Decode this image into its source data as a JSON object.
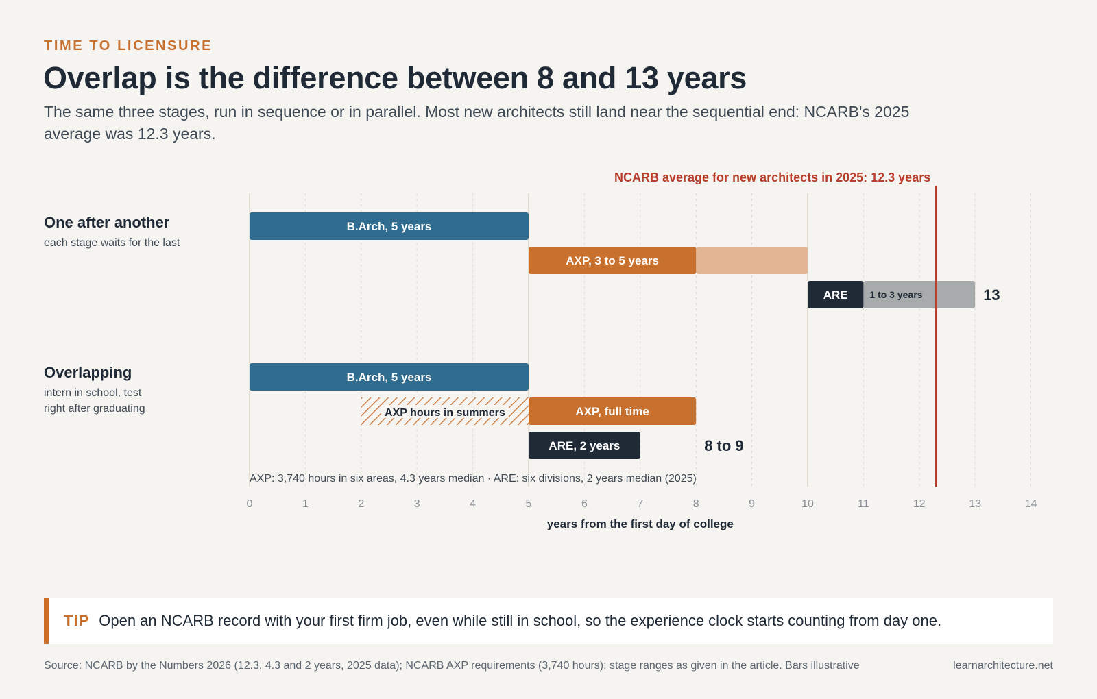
{
  "header": {
    "kicker": "TIME TO LICENSURE",
    "title": "Overlap is the difference between 8 and 13 years",
    "subtitle": "The same three stages, run in sequence or in parallel. Most new architects still land near the sequential end: NCARB's 2025 average was 12.3 years."
  },
  "colors": {
    "barch": "#2f6c8f",
    "axp": "#c8702e",
    "axp_extension": "#e2b594",
    "are": "#1f2a36",
    "are_extension": "#a8abab",
    "average_line": "#b83d2a"
  },
  "chart_data": {
    "type": "bar",
    "orientation": "horizontal",
    "xlabel": "years from the first day of college",
    "xlim": [
      0,
      14
    ],
    "xticks": [
      0,
      1,
      2,
      3,
      4,
      5,
      6,
      7,
      8,
      9,
      10,
      11,
      12,
      13,
      14
    ],
    "reference_line": {
      "x": 12.3,
      "label": "NCARB average for new architects in 2025: 12.3 years"
    },
    "note": "AXP: 3,740 hours in six areas, 4.3 years median · ARE: six divisions, 2 years median (2025)",
    "groups": [
      {
        "title": "One after another",
        "subtitle_lines": [
          "each stage waits for the last"
        ],
        "total_label": "13",
        "bars": [
          {
            "label": "B.Arch, 5 years",
            "start": 0,
            "end": 5,
            "kind": "barch"
          },
          {
            "label": "AXP, 3 to 5 years",
            "start": 5,
            "end": 8,
            "extension_end": 10,
            "kind": "axp"
          },
          {
            "label": "ARE",
            "extension_label": "1 to 3 years",
            "start": 10,
            "end": 11,
            "extension_end": 13,
            "kind": "are"
          }
        ]
      },
      {
        "title": "Overlapping",
        "subtitle_lines": [
          "intern in school, test",
          "right after graduating"
        ],
        "total_label": "8 to 9",
        "bars": [
          {
            "label": "B.Arch, 5 years",
            "start": 0,
            "end": 5,
            "kind": "barch"
          },
          {
            "label": "AXP full time",
            "start": 5,
            "end": 8,
            "kind": "axp",
            "display": "AXP, full time",
            "hatch_start": 2,
            "hatch_end": 5,
            "hatch_label": "AXP hours in summers"
          },
          {
            "label": "ARE, 2 years",
            "start": 5,
            "end": 7,
            "kind": "are"
          }
        ]
      }
    ]
  },
  "tip": {
    "label": "TIP",
    "text": "Open an NCARB record with your first firm job, even while still in school, so the experience clock starts counting from day one."
  },
  "footer": {
    "source": "Source: NCARB by the Numbers 2026 (12.3, 4.3 and 2 years, 2025 data); NCARB AXP requirements (3,740 hours); stage ranges as given in the article. Bars illustrative",
    "site": "learnarchitecture.net"
  }
}
